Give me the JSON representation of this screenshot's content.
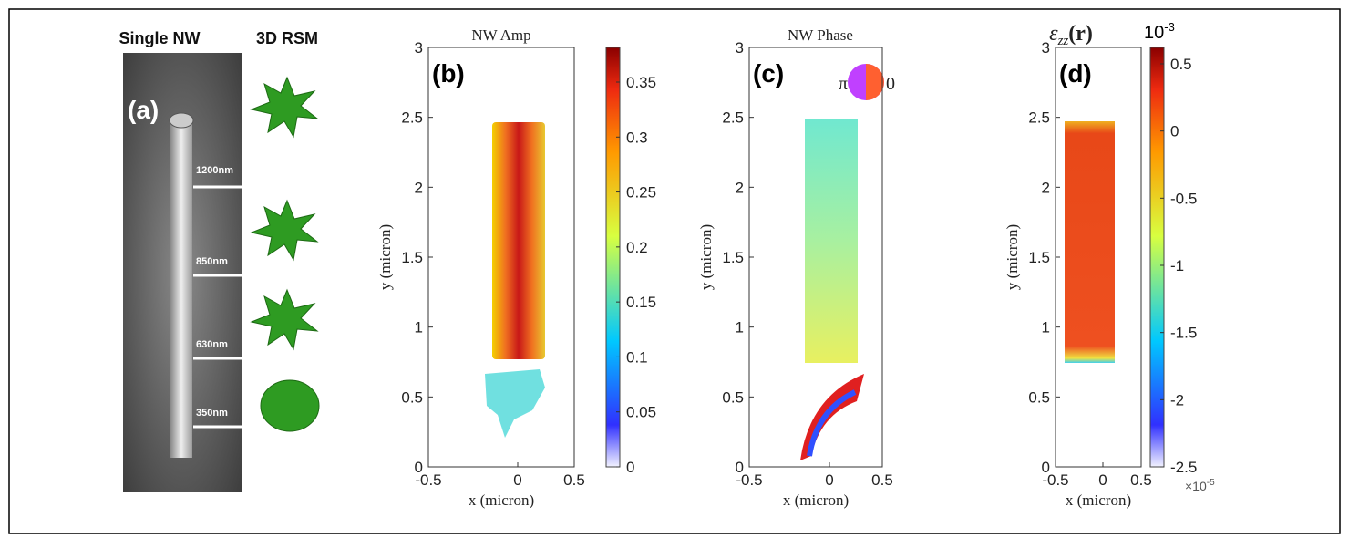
{
  "panel_a": {
    "label": "(a)",
    "headers": [
      "Single NW",
      "3D RSM"
    ],
    "heights": [
      "1200nm",
      "850nm",
      "630nm",
      "350nm"
    ]
  },
  "panel_b": {
    "label": "(b)",
    "title": "NW Amp",
    "ylabel": "y (micron)",
    "xlabel": "x (micron)",
    "yticks": [
      "0",
      "0.5",
      "1",
      "1.5",
      "2",
      "2.5",
      "3"
    ],
    "xticks": [
      "-0.5",
      "0",
      "0.5"
    ],
    "colorbar_ticks": [
      "0",
      "0.05",
      "0.1",
      "0.15",
      "0.2",
      "0.25",
      "0.3",
      "0.35"
    ]
  },
  "panel_c": {
    "label": "(c)",
    "title": "NW Phase",
    "ylabel": "y (micron)",
    "xlabel": "x (micron)",
    "yticks": [
      "0",
      "0.5",
      "1",
      "1.5",
      "2",
      "2.5",
      "3"
    ],
    "xticks": [
      "-0.5",
      "0",
      "0.5"
    ],
    "wheel_labels": [
      "π",
      "0"
    ]
  },
  "panel_d": {
    "label": "(d)",
    "title_symbol": "ε",
    "title_subscript": "zz",
    "title_arg": "(r)",
    "ylabel": "y (micron)",
    "xlabel": "x (micron)",
    "yticks": [
      "0",
      "0.5",
      "1",
      "1.5",
      "2",
      "2.5",
      "3"
    ],
    "xticks": [
      "-0.5",
      "0",
      "0.5"
    ],
    "colorbar_ticks": [
      "-2.5",
      "-2",
      "-1.5",
      "-1",
      "-0.5",
      "0",
      "0.5"
    ],
    "colorbar_unit_base": "10",
    "colorbar_unit_exp": "-3",
    "scale_base": "×10",
    "scale_exp": "-5"
  }
}
